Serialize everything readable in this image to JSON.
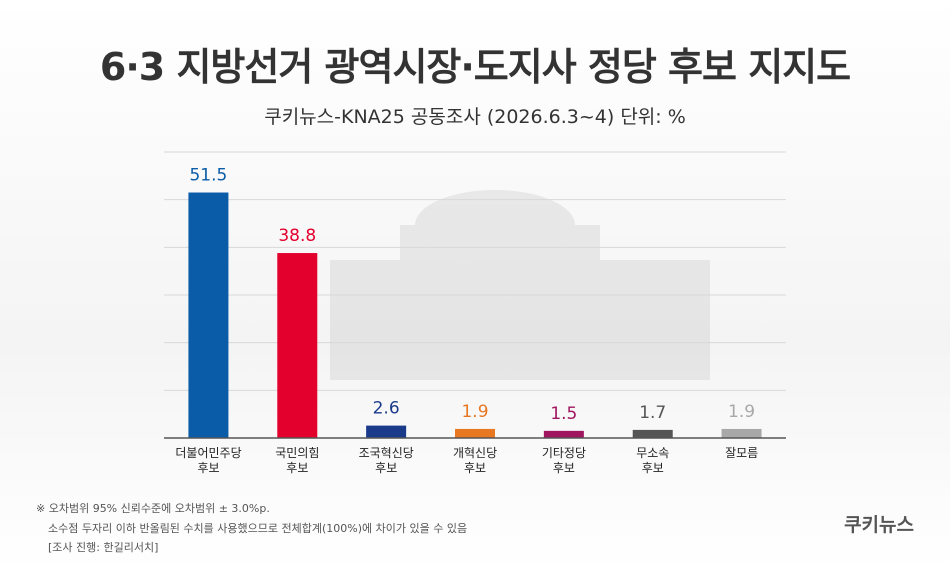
{
  "chart_data": {
    "type": "bar",
    "title": "6·3 지방선거 광역시장·도지사 정당 후보 지지도",
    "subtitle": "쿠키뉴스-KNA25 공동조사 (2026.6.3~4) 단위: %",
    "categories": [
      "더불어민주당\n후보",
      "국민의힘\n후보",
      "조국혁신당\n후보",
      "개혁신당\n후보",
      "기타정당\n후보",
      "무소속\n후보",
      "잘모름"
    ],
    "values": [
      51.5,
      38.8,
      2.6,
      1.9,
      1.5,
      1.7,
      1.9
    ],
    "colors": [
      "#0a5ca8",
      "#e3002d",
      "#1a3a8a",
      "#e87722",
      "#a0155f",
      "#555555",
      "#a8a8a8"
    ],
    "ylim": [
      0,
      60
    ],
    "yticks": [
      0,
      10,
      20,
      30,
      40,
      50,
      60
    ],
    "grid": true,
    "notes": [
      "※ 오차범위 95% 신뢰수준에 오차범위 ± 3.0%p.",
      "소수점 두자리 이하 반올림된 수치를 사용했으므로 전체합계(100%)에 차이가 있을 수 있음",
      "[조사 진행: 한길리서치]"
    ],
    "logo": "쿠키뉴스"
  }
}
